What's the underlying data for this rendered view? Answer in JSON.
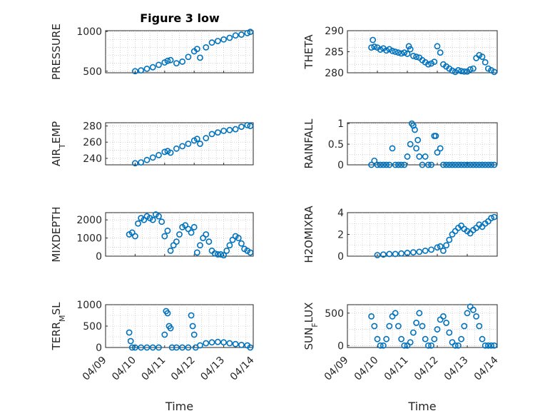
{
  "figure": {
    "title": "Figure 3 low",
    "marker_color": "#0072BD"
  },
  "chart_data": [
    {
      "type": "scatter",
      "ylabel": "PRESSURE",
      "ylabel_parts": [
        "PRESSURE"
      ],
      "xlabel": "",
      "ylim": [
        480,
        1010
      ],
      "yticks": [
        "500",
        "1000"
      ],
      "ytick_values": [
        500,
        1000
      ],
      "ygrid_minor": [
        600,
        700,
        800,
        900
      ],
      "title": "Figure 3 low",
      "show_xticks": false,
      "x": [
        10.0,
        10.2,
        10.4,
        10.6,
        10.8,
        11.0,
        11.1,
        11.2,
        11.4,
        11.6,
        11.8,
        12.0,
        12.1,
        12.2,
        12.4,
        12.6,
        12.8,
        13.0,
        13.2,
        13.4,
        13.6,
        13.8,
        13.9
      ],
      "y": [
        500,
        510,
        530,
        550,
        580,
        610,
        630,
        640,
        600,
        620,
        680,
        750,
        780,
        670,
        800,
        860,
        880,
        900,
        920,
        950,
        960,
        980,
        995
      ]
    },
    {
      "type": "scatter",
      "ylabel": "THETA",
      "ylabel_parts": [
        "THETA"
      ],
      "xlabel": "",
      "ylim": [
        280,
        290
      ],
      "yticks": [
        "280",
        "285",
        "290"
      ],
      "ytick_values": [
        280,
        285,
        290
      ],
      "ygrid_minor": [
        282,
        284,
        286,
        288
      ],
      "show_xticks": false,
      "x": [
        9.8,
        9.85,
        9.9,
        10.0,
        10.1,
        10.2,
        10.3,
        10.4,
        10.5,
        10.6,
        10.7,
        10.8,
        10.9,
        11.0,
        11.05,
        11.1,
        11.2,
        11.3,
        11.4,
        11.5,
        11.6,
        11.7,
        11.8,
        11.9,
        12.0,
        12.1,
        12.2,
        12.3,
        12.4,
        12.5,
        12.6,
        12.7,
        12.8,
        12.9,
        13.0,
        13.1,
        13.2,
        13.3,
        13.4,
        13.5,
        13.6,
        13.7,
        13.8,
        13.9
      ],
      "y": [
        286.0,
        287.8,
        286.2,
        286.0,
        285.5,
        285.8,
        285.3,
        285.6,
        285.2,
        285.0,
        284.8,
        284.6,
        284.8,
        284.5,
        286.3,
        285.6,
        284.0,
        283.8,
        283.6,
        283.0,
        282.5,
        282.0,
        282.2,
        282.6,
        286.3,
        284.8,
        282.0,
        281.5,
        281.0,
        280.5,
        280.2,
        280.6,
        280.4,
        280.3,
        280.3,
        280.8,
        281.0,
        283.5,
        284.2,
        283.8,
        282.5,
        281.0,
        280.6,
        280.2
      ]
    },
    {
      "type": "scatter",
      "ylabel": "AIR_TEMP",
      "ylabel_parts": [
        "AIR",
        "T",
        "EMP"
      ],
      "xlabel": "",
      "ylim": [
        232,
        284
      ],
      "yticks": [
        "240",
        "260",
        "280"
      ],
      "ytick_values": [
        240,
        260,
        280
      ],
      "ygrid_minor": [
        250,
        270
      ],
      "show_xticks": false,
      "x": [
        10.0,
        10.2,
        10.4,
        10.6,
        10.8,
        11.0,
        11.1,
        11.2,
        11.4,
        11.6,
        11.8,
        12.0,
        12.1,
        12.2,
        12.4,
        12.6,
        12.8,
        13.0,
        13.2,
        13.4,
        13.6,
        13.8,
        13.9
      ],
      "y": [
        234,
        235,
        238,
        241,
        244,
        248,
        249,
        247,
        252,
        255,
        258,
        262,
        264,
        258,
        265,
        270,
        272,
        274,
        275,
        276,
        279,
        281,
        280
      ]
    },
    {
      "type": "scatter",
      "ylabel": "RAINFALL",
      "ylabel_parts": [
        "RAINFALL"
      ],
      "xlabel": "",
      "ylim": [
        0,
        1.02
      ],
      "yticks": [
        "0",
        "0.5",
        "1"
      ],
      "ytick_values": [
        0,
        0.5,
        1
      ],
      "ygrid_minor": [
        0.25,
        0.75
      ],
      "show_xticks": false,
      "x": [
        9.8,
        9.9,
        10.0,
        10.1,
        10.2,
        10.3,
        10.4,
        10.5,
        10.6,
        10.7,
        10.8,
        10.9,
        11.0,
        11.1,
        11.15,
        11.2,
        11.25,
        11.3,
        11.35,
        11.4,
        11.5,
        11.6,
        11.7,
        11.8,
        11.9,
        11.95,
        12.0,
        12.1,
        12.2,
        12.3,
        12.4,
        12.5,
        12.6,
        12.7,
        12.8,
        12.9,
        13.0,
        13.1,
        13.2,
        13.3,
        13.4,
        13.5,
        13.6,
        13.7,
        13.8,
        13.9
      ],
      "y": [
        0,
        0.1,
        0,
        0,
        0,
        0,
        0,
        0.4,
        0,
        0,
        0,
        0,
        0.2,
        0.5,
        1.0,
        0.95,
        0.85,
        0.4,
        0.6,
        0.2,
        0,
        0.2,
        0,
        0,
        0.7,
        0.7,
        0.3,
        0.4,
        0,
        0,
        0,
        0,
        0,
        0,
        0,
        0,
        0,
        0,
        0,
        0,
        0,
        0,
        0,
        0,
        0,
        0
      ]
    },
    {
      "type": "scatter",
      "ylabel": "MIXDEPTH",
      "ylabel_parts": [
        "MIXDEPTH"
      ],
      "xlabel": "",
      "ylim": [
        0,
        2400
      ],
      "yticks": [
        "0",
        "1000",
        "2000"
      ],
      "ytick_values": [
        0,
        1000,
        2000
      ],
      "ygrid_minor": [
        500,
        1500
      ],
      "show_xticks": false,
      "x": [
        9.8,
        9.9,
        10.0,
        10.1,
        10.2,
        10.3,
        10.4,
        10.5,
        10.6,
        10.7,
        10.8,
        10.9,
        11.0,
        11.1,
        11.2,
        11.3,
        11.4,
        11.5,
        11.6,
        11.7,
        11.8,
        11.9,
        12.0,
        12.1,
        12.2,
        12.3,
        12.4,
        12.5,
        12.6,
        12.7,
        12.8,
        12.9,
        13.0,
        13.1,
        13.2,
        13.3,
        13.4,
        13.5,
        13.6,
        13.7,
        13.8,
        13.9
      ],
      "y": [
        1200,
        1300,
        1100,
        1800,
        2100,
        2000,
        2200,
        2100,
        2000,
        2300,
        2200,
        1900,
        1100,
        1400,
        300,
        600,
        800,
        1200,
        1600,
        1700,
        1500,
        1300,
        1600,
        200,
        600,
        1000,
        1200,
        800,
        300,
        150,
        100,
        100,
        50,
        300,
        600,
        900,
        1100,
        1000,
        700,
        400,
        300,
        200
      ]
    },
    {
      "type": "scatter",
      "ylabel": "H2OMIXRA",
      "ylabel_parts": [
        "H2OMIXRA"
      ],
      "xlabel": "",
      "ylim": [
        0,
        4
      ],
      "yticks": [
        "0",
        "2",
        "4"
      ],
      "ytick_values": [
        0,
        2,
        4
      ],
      "ygrid_minor": [
        1,
        3
      ],
      "show_xticks": false,
      "x": [
        10.0,
        10.2,
        10.4,
        10.6,
        10.8,
        11.0,
        11.2,
        11.4,
        11.6,
        11.8,
        12.0,
        12.1,
        12.2,
        12.3,
        12.4,
        12.5,
        12.6,
        12.7,
        12.8,
        12.9,
        13.0,
        13.1,
        13.2,
        13.3,
        13.4,
        13.5,
        13.6,
        13.7,
        13.8,
        13.9
      ],
      "y": [
        0.1,
        0.15,
        0.2,
        0.2,
        0.25,
        0.3,
        0.35,
        0.4,
        0.5,
        0.6,
        0.8,
        0.9,
        0.5,
        1.0,
        1.5,
        2.0,
        2.3,
        2.6,
        2.8,
        2.5,
        2.3,
        2.1,
        2.4,
        2.6,
        2.9,
        2.7,
        3.0,
        3.2,
        3.5,
        3.6
      ]
    },
    {
      "type": "scatter",
      "ylabel": "TERR_MSL",
      "ylabel_parts": [
        "TERR",
        "M",
        "SL"
      ],
      "xlabel": "Time",
      "ylim": [
        0,
        1000
      ],
      "yticks": [
        "0",
        "500",
        "1000"
      ],
      "ytick_values": [
        0,
        500,
        1000
      ],
      "ygrid_minor": [
        250,
        750
      ],
      "show_xticks": true,
      "xticks": [
        "04/09",
        "04/10",
        "04/11",
        "04/12",
        "04/13",
        "04/14"
      ],
      "xtick_values": [
        9,
        10,
        11,
        12,
        13,
        14
      ],
      "x": [
        9.8,
        9.85,
        9.9,
        10.0,
        10.2,
        10.4,
        10.6,
        10.8,
        11.0,
        11.05,
        11.1,
        11.15,
        11.2,
        11.25,
        11.4,
        11.6,
        11.8,
        11.9,
        11.95,
        12.0,
        12.05,
        12.2,
        12.4,
        12.6,
        12.8,
        13.0,
        13.2,
        13.4,
        13.6,
        13.8,
        13.9
      ],
      "y": [
        350,
        150,
        0,
        0,
        0,
        0,
        0,
        0,
        300,
        850,
        800,
        500,
        450,
        0,
        0,
        0,
        0,
        750,
        500,
        300,
        0,
        50,
        100,
        120,
        130,
        120,
        100,
        80,
        60,
        50,
        0
      ]
    },
    {
      "type": "scatter",
      "ylabel": "SUN_FLUX",
      "ylabel_parts": [
        "SUN",
        "F",
        "LUX"
      ],
      "xlabel": "Time",
      "ylim": [
        -30,
        630
      ],
      "yticks": [
        "0",
        "500"
      ],
      "ytick_values": [
        0,
        500
      ],
      "ygrid_minor": [
        250
      ],
      "show_xticks": true,
      "xticks": [
        "04/09",
        "04/10",
        "04/11",
        "04/12",
        "04/13",
        "04/14"
      ],
      "xtick_values": [
        9,
        10,
        11,
        12,
        13,
        14
      ],
      "x": [
        9.8,
        9.9,
        10.0,
        10.1,
        10.2,
        10.3,
        10.4,
        10.5,
        10.6,
        10.7,
        10.8,
        10.9,
        11.0,
        11.1,
        11.2,
        11.3,
        11.4,
        11.5,
        11.6,
        11.7,
        11.8,
        11.9,
        12.0,
        12.1,
        12.2,
        12.3,
        12.4,
        12.5,
        12.6,
        12.7,
        12.8,
        12.9,
        13.0,
        13.1,
        13.2,
        13.3,
        13.4,
        13.5,
        13.6,
        13.7,
        13.8,
        13.9
      ],
      "y": [
        450,
        300,
        100,
        0,
        0,
        100,
        300,
        450,
        500,
        300,
        100,
        0,
        0,
        50,
        200,
        350,
        500,
        300,
        100,
        0,
        0,
        100,
        250,
        400,
        450,
        350,
        200,
        50,
        0,
        0,
        100,
        300,
        500,
        600,
        550,
        450,
        300,
        100,
        0,
        0,
        0,
        0
      ]
    }
  ]
}
